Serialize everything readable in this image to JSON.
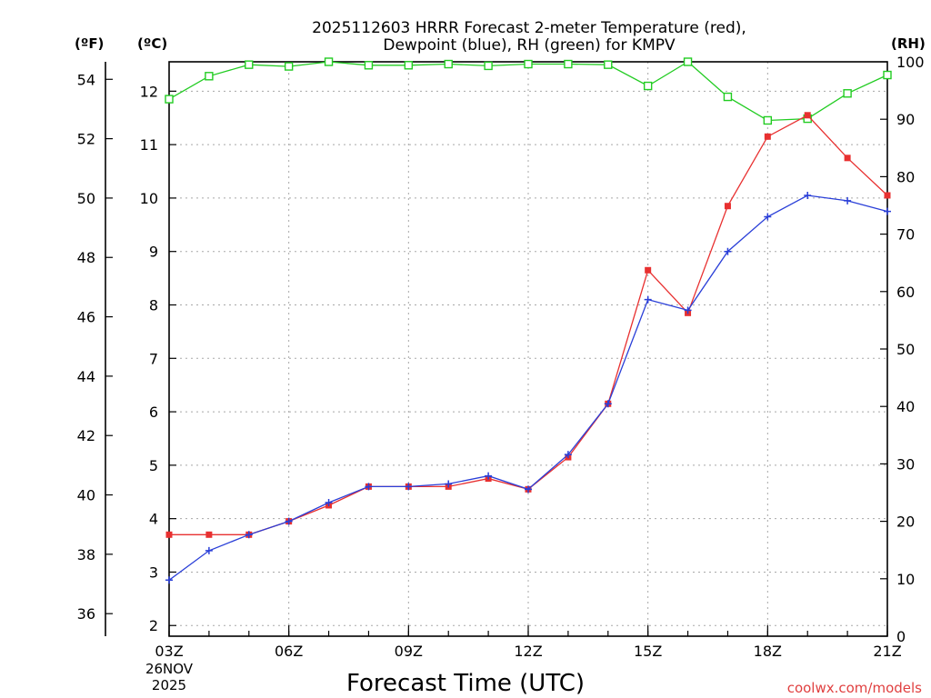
{
  "chart_data": {
    "type": "line",
    "title": [
      "2025112603 HRRR Forecast 2-meter Temperature (red),",
      "Dewpoint (blue), RH (green) for KMPV"
    ],
    "xlabel": "Forecast Time (UTC)",
    "unit_labels": {
      "f": "(ºF)",
      "c": "(ºC)",
      "rh": "(RH)"
    },
    "watermark": "coolwx.com/models",
    "x_date_label": [
      "26NOV",
      "2025"
    ],
    "x": [
      3,
      4,
      5,
      6,
      7,
      8,
      9,
      10,
      11,
      12,
      13,
      14,
      15,
      16,
      17,
      18,
      19,
      20,
      21
    ],
    "x_ticks": [
      {
        "h": 3,
        "label": "03Z"
      },
      {
        "h": 6,
        "label": "06Z"
      },
      {
        "h": 9,
        "label": "09Z"
      },
      {
        "h": 12,
        "label": "12Z"
      },
      {
        "h": 15,
        "label": "15Z"
      },
      {
        "h": 18,
        "label": "18Z"
      },
      {
        "h": 21,
        "label": "21Z"
      }
    ],
    "xlim": [
      3,
      21
    ],
    "ylim_c": [
      1.8,
      12.55
    ],
    "y_ticks_c": [
      "2",
      "3",
      "4",
      "5",
      "6",
      "7",
      "8",
      "9",
      "10",
      "11",
      "12"
    ],
    "y_ticks_f": [
      "36",
      "38",
      "40",
      "42",
      "44",
      "46",
      "48",
      "50",
      "52",
      "54"
    ],
    "ylim_rh": [
      0,
      100
    ],
    "y_ticks_rh": [
      "0",
      "10",
      "20",
      "30",
      "40",
      "50",
      "60",
      "70",
      "80",
      "90",
      "100"
    ],
    "series": [
      {
        "name": "Temperature",
        "axis": "c",
        "color": "#e83030",
        "marker": "square",
        "values": [
          3.7,
          3.7,
          3.7,
          3.95,
          4.25,
          4.6,
          4.6,
          4.6,
          4.75,
          4.55,
          5.15,
          6.15,
          8.65,
          7.85,
          9.85,
          11.15,
          11.55,
          10.75,
          10.05
        ]
      },
      {
        "name": "Dewpoint",
        "axis": "c",
        "color": "#2a3fd8",
        "marker": "plus",
        "values": [
          2.85,
          3.4,
          3.7,
          3.95,
          4.3,
          4.6,
          4.6,
          4.65,
          4.8,
          4.55,
          5.2,
          6.15,
          8.1,
          7.9,
          9.0,
          9.65,
          10.05,
          9.95,
          9.75
        ]
      },
      {
        "name": "RH",
        "axis": "rh",
        "color": "#22cc22",
        "marker": "open-square",
        "values": [
          93.5,
          97.5,
          99.5,
          99.2,
          100,
          99.4,
          99.4,
          99.6,
          99.3,
          99.6,
          99.6,
          99.5,
          95.8,
          100,
          93.9,
          89.8,
          90.1,
          94.5,
          97.7
        ]
      }
    ]
  }
}
